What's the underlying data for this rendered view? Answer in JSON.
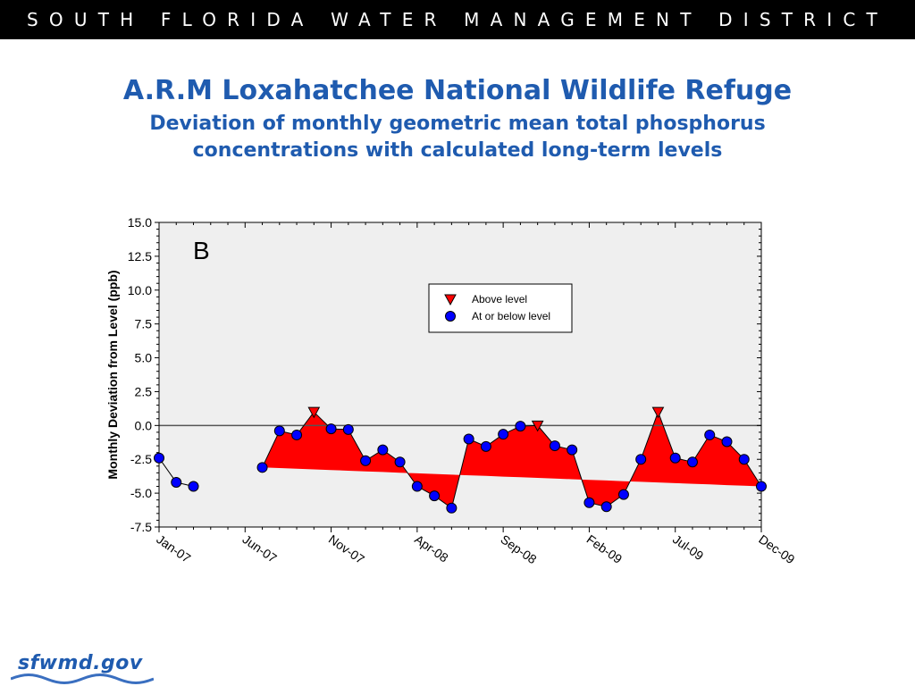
{
  "header": {
    "banner": "SOUTH FLORIDA WATER MANAGEMENT DISTRICT"
  },
  "slide": {
    "title": "A.R.M Loxahatchee National Wildlife Refuge",
    "subtitle": "Deviation of monthly geometric mean total phosphorus concentrations with calculated long-term levels"
  },
  "footer": {
    "logo_text": "sfwmd.gov"
  },
  "colors": {
    "fill_above": "#FF0000",
    "point_below": "#0000FF",
    "plot_bg": "#EFEFEF",
    "title": "#1F5BAF"
  },
  "chart_data": {
    "type": "line",
    "panel_label": "B",
    "ylabel": "Monthly Deviation from Level (ppb)",
    "xlabel": "",
    "ylim": [
      -7.5,
      15.0
    ],
    "yticks": [
      "15.0",
      "12.5",
      "10.0",
      "7.5",
      "5.0",
      "2.5",
      "0.0",
      "-2.5",
      "-5.0",
      "-7.5"
    ],
    "xticks": [
      "Jan-07",
      "Jun-07",
      "Nov-07",
      "Apr-08",
      "Sep-08",
      "Feb-09",
      "Jul-09",
      "Dec-09"
    ],
    "x_range_months": [
      "2007-01",
      "2009-12"
    ],
    "zero_line": 0.0,
    "legend": {
      "position": "top-right",
      "entries": [
        {
          "label": "Above level",
          "marker": "triangle-down",
          "color": "#FF0000"
        },
        {
          "label": "At or below level",
          "marker": "circle",
          "color": "#0000FF"
        }
      ]
    },
    "series": [
      {
        "type": "deviation",
        "x": [
          "2007-01",
          "2007-02",
          "2007-03",
          "2007-04",
          "2007-05",
          "2007-06",
          "2007-07",
          "2007-08",
          "2007-09",
          "2007-10",
          "2007-11",
          "2007-12",
          "2008-01",
          "2008-02",
          "2008-03",
          "2008-04",
          "2008-05",
          "2008-06",
          "2008-07",
          "2008-08",
          "2008-09",
          "2008-10",
          "2008-11",
          "2008-12",
          "2009-01",
          "2009-02",
          "2009-03",
          "2009-04",
          "2009-05",
          "2009-06",
          "2009-07",
          "2009-08",
          "2009-09",
          "2009-10",
          "2009-11",
          "2009-12"
        ],
        "values": [
          -2.4,
          -4.2,
          -4.5,
          null,
          null,
          null,
          -3.1,
          -0.4,
          -0.7,
          1.0,
          -0.25,
          -0.3,
          -2.6,
          -1.8,
          -2.7,
          -4.5,
          -5.2,
          -6.1,
          -1.0,
          -1.55,
          -0.65,
          -0.05,
          0.0,
          -1.5,
          -1.8,
          -5.7,
          -6.0,
          -5.1,
          -2.5,
          1.0,
          -2.4,
          -2.7,
          -0.7,
          -1.2,
          -2.5,
          -4.5
        ],
        "status": [
          "below",
          "below",
          "below",
          null,
          null,
          null,
          "below",
          "below",
          "below",
          "above",
          "below",
          "below",
          "below",
          "below",
          "below",
          "below",
          "below",
          "below",
          "below",
          "below",
          "below",
          "below",
          "above",
          "below",
          "below",
          "below",
          "below",
          "below",
          "below",
          "above",
          "below",
          "below",
          "below",
          "below",
          "below",
          "below"
        ]
      }
    ],
    "level_line_start": -3.1,
    "level_line_end": -4.5
  }
}
